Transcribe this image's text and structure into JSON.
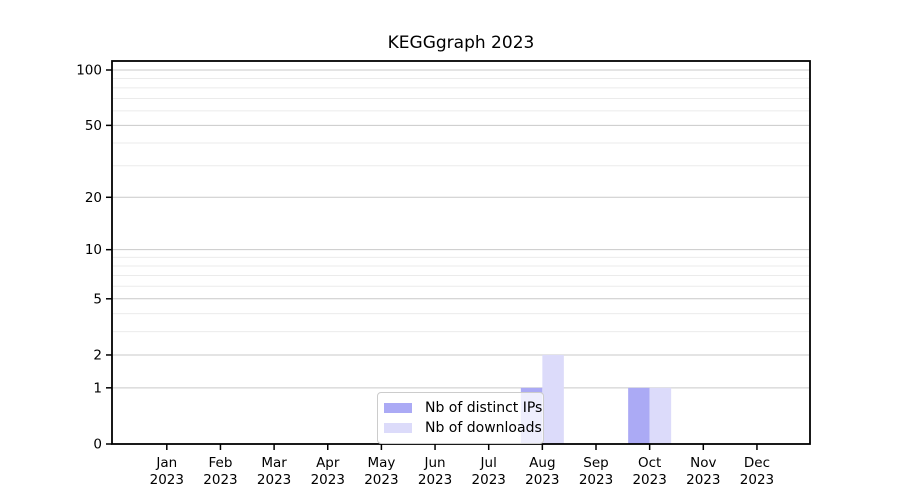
{
  "chart_data": {
    "type": "bar",
    "title": "KEGGgraph 2023",
    "categories": [
      "Jan 2023",
      "Feb 2023",
      "Mar 2023",
      "Apr 2023",
      "May 2023",
      "Jun 2023",
      "Jul 2023",
      "Aug 2023",
      "Sep 2023",
      "Oct 2023",
      "Nov 2023",
      "Dec 2023"
    ],
    "series": [
      {
        "name": "Nb of distinct IPs",
        "color": "#abaaf5",
        "values": [
          0,
          0,
          0,
          0,
          0,
          0,
          0,
          1,
          0,
          1,
          0,
          0
        ]
      },
      {
        "name": "Nb of downloads",
        "color": "#dcdbfa",
        "values": [
          0,
          0,
          0,
          0,
          0,
          0,
          0,
          2,
          0,
          1,
          0,
          0
        ]
      }
    ],
    "xlabel": "",
    "ylabel": "",
    "yscale": "log1p",
    "yticks": [
      0,
      1,
      2,
      5,
      10,
      20,
      50,
      100
    ],
    "ylim": [
      0,
      115
    ],
    "grid": "horizontal-log",
    "legend_position": "inside-bottom-center",
    "colors": {
      "spine": "#000000",
      "grid_major": "#c9c9c9",
      "grid_minor": "#ebebeb",
      "background": "#ffffff"
    }
  }
}
